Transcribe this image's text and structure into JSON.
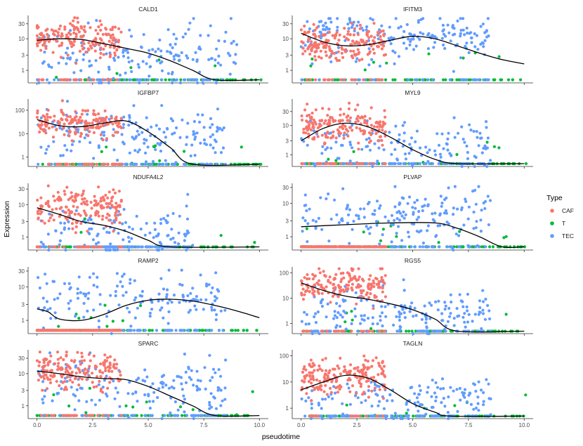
{
  "chart_data": {
    "type": "scatter",
    "xlabel": "pseudotime",
    "ylabel": "Expression",
    "x_ticks": [
      0.0,
      2.5,
      5.0,
      7.5,
      10.0
    ],
    "x_tick_labels": [
      "0.0",
      "2.5",
      "5.0",
      "7.5",
      "10.0"
    ],
    "xlim": [
      -0.4,
      10.4
    ],
    "y_scale": "log",
    "legend": {
      "title": "Type",
      "position": "right",
      "entries": [
        {
          "label": "CAF",
          "color": "#F8766D"
        },
        {
          "label": "T",
          "color": "#00BA38"
        },
        {
          "label": "TEC",
          "color": "#619CFF"
        }
      ]
    },
    "panels": [
      {
        "title": "CALD1",
        "y_ticks": [
          1,
          3,
          10,
          30
        ],
        "ylim": [
          0.4,
          55
        ],
        "caf": {
          "range": [
            0,
            3.8
          ],
          "level": 10,
          "spread": 0.9
        },
        "tec": {
          "range": [
            0,
            9
          ],
          "level": 3,
          "spread": 1.0,
          "drop": 0.25
        },
        "zero_level": 0.5,
        "trend": [
          [
            0,
            9
          ],
          [
            1,
            10
          ],
          [
            2,
            9.5
          ],
          [
            3,
            7
          ],
          [
            4,
            5
          ],
          [
            5,
            3.5
          ],
          [
            6,
            2
          ],
          [
            7,
            1
          ],
          [
            8,
            0.5
          ],
          [
            10,
            0.5
          ]
        ]
      },
      {
        "title": "IFITM3",
        "y_ticks": [
          1,
          3,
          10,
          30
        ],
        "ylim": [
          0.4,
          55
        ],
        "caf": {
          "range": [
            0,
            3.8
          ],
          "level": 7,
          "spread": 0.9
        },
        "tec": {
          "range": [
            0,
            8.5
          ],
          "level": 12,
          "spread": 0.9
        },
        "zero_level": 0.5,
        "trend": [
          [
            0,
            15
          ],
          [
            1,
            8
          ],
          [
            2,
            6
          ],
          [
            3,
            6.5
          ],
          [
            4,
            9
          ],
          [
            5,
            12
          ],
          [
            6,
            10
          ],
          [
            7,
            6
          ],
          [
            8,
            3.5
          ],
          [
            9,
            2.2
          ],
          [
            10,
            1.6
          ]
        ]
      },
      {
        "title": "IGFBP7",
        "y_ticks": [
          1,
          10,
          100
        ],
        "ylim": [
          0.4,
          300
        ],
        "caf": {
          "range": [
            0,
            3.8
          ],
          "level": 30,
          "spread": 1.0
        },
        "tec": {
          "range": [
            0,
            8.5
          ],
          "level": 8,
          "spread": 1.2,
          "drop": 0.2
        },
        "zero_level": 0.5,
        "trend": [
          [
            0,
            40
          ],
          [
            1,
            22
          ],
          [
            2,
            20
          ],
          [
            3,
            28
          ],
          [
            4,
            35
          ],
          [
            5,
            12
          ],
          [
            6,
            2.5
          ],
          [
            7,
            0.5
          ],
          [
            10,
            0.5
          ]
        ]
      },
      {
        "title": "MYL9",
        "y_ticks": [
          1,
          3,
          10,
          30
        ],
        "ylim": [
          0.4,
          80
        ],
        "caf": {
          "range": [
            0,
            3.8
          ],
          "level": 10,
          "spread": 1.0
        },
        "tec": {
          "range": [
            0,
            8.5
          ],
          "level": 2,
          "spread": 1.0,
          "drop": 0.35
        },
        "zero_level": 0.5,
        "trend": [
          [
            0,
            3
          ],
          [
            1,
            8
          ],
          [
            2,
            12
          ],
          [
            3,
            9
          ],
          [
            4,
            4
          ],
          [
            5,
            1.5
          ],
          [
            6,
            0.7
          ],
          [
            7,
            0.5
          ],
          [
            10,
            0.5
          ]
        ]
      },
      {
        "title": "NDUFA4L2",
        "y_ticks": [
          1,
          3,
          10,
          30
        ],
        "ylim": [
          0.4,
          45
        ],
        "caf": {
          "range": [
            0,
            3.8
          ],
          "level": 8,
          "spread": 0.9
        },
        "tec": {
          "range": [
            0,
            7
          ],
          "level": 1.5,
          "spread": 1.0,
          "drop": 0.5
        },
        "zero_level": 0.5,
        "trend": [
          [
            0,
            8
          ],
          [
            1,
            5
          ],
          [
            2,
            3
          ],
          [
            3,
            2.3
          ],
          [
            4,
            1.5
          ],
          [
            5,
            0.8
          ],
          [
            6,
            0.5
          ],
          [
            10,
            0.5
          ]
        ]
      },
      {
        "title": "PLVAP",
        "y_ticks": [
          1,
          3,
          10,
          30
        ],
        "ylim": [
          0.4,
          40
        ],
        "caf": {
          "range": [
            0,
            3.8
          ],
          "level": 0.5,
          "spread": 0.2,
          "drop": 1.0
        },
        "tec": {
          "range": [
            0,
            8.5
          ],
          "level": 4,
          "spread": 1.0,
          "drop": 0.2
        },
        "zero_level": 0.5,
        "trend": [
          [
            0,
            2
          ],
          [
            2,
            2.3
          ],
          [
            4,
            2.6
          ],
          [
            6,
            2.6
          ],
          [
            7,
            1.8
          ],
          [
            8,
            1.0
          ],
          [
            9,
            0.5
          ],
          [
            10,
            0.5
          ]
        ]
      },
      {
        "title": "RAMP2",
        "y_ticks": [
          1,
          3,
          10,
          30
        ],
        "ylim": [
          0.4,
          40
        ],
        "caf": {
          "range": [
            0,
            3.8
          ],
          "level": 0.5,
          "spread": 0.2,
          "drop": 1.0
        },
        "tec": {
          "range": [
            0,
            8.5
          ],
          "level": 5,
          "spread": 0.9,
          "drop": 0.3
        },
        "zero_level": 0.5,
        "trend": [
          [
            0,
            2.2
          ],
          [
            0.5,
            1.8
          ],
          [
            1,
            1.1
          ],
          [
            2,
            1.0
          ],
          [
            3,
            1.5
          ],
          [
            4,
            2.8
          ],
          [
            5,
            4
          ],
          [
            6,
            4.3
          ],
          [
            7,
            3.8
          ],
          [
            8,
            2.8
          ],
          [
            9,
            1.9
          ],
          [
            10,
            1.2
          ]
        ]
      },
      {
        "title": "RGS5",
        "y_ticks": [
          1,
          10,
          100
        ],
        "ylim": [
          0.4,
          170
        ],
        "caf": {
          "range": [
            0,
            3.8
          ],
          "level": 30,
          "spread": 1.0
        },
        "tec": {
          "range": [
            0,
            8.5
          ],
          "level": 3,
          "spread": 1.0,
          "drop": 0.3
        },
        "zero_level": 0.5,
        "trend": [
          [
            0,
            40
          ],
          [
            1,
            20
          ],
          [
            2,
            12
          ],
          [
            3,
            9
          ],
          [
            4,
            6
          ],
          [
            5,
            3.5
          ],
          [
            6,
            1.5
          ],
          [
            7,
            0.5
          ],
          [
            10,
            0.5
          ]
        ]
      },
      {
        "title": "SPARC",
        "y_ticks": [
          1,
          3,
          10,
          30
        ],
        "ylim": [
          0.4,
          55
        ],
        "caf": {
          "range": [
            0,
            3.8
          ],
          "level": 12,
          "spread": 0.9
        },
        "tec": {
          "range": [
            0,
            8.5
          ],
          "level": 4,
          "spread": 1.0,
          "drop": 0.25
        },
        "zero_level": 0.5,
        "trend": [
          [
            0,
            12
          ],
          [
            1,
            10
          ],
          [
            2,
            8
          ],
          [
            3,
            7
          ],
          [
            4,
            6.5
          ],
          [
            5,
            4
          ],
          [
            6,
            2
          ],
          [
            7,
            1
          ],
          [
            8,
            0.5
          ],
          [
            10,
            0.5
          ]
        ]
      },
      {
        "title": "TAGLN",
        "y_ticks": [
          1,
          10,
          100
        ],
        "ylim": [
          0.4,
          170
        ],
        "caf": {
          "range": [
            0,
            3.8
          ],
          "level": 15,
          "spread": 1.0
        },
        "tec": {
          "range": [
            0,
            8.5
          ],
          "level": 2,
          "spread": 1.0,
          "drop": 0.35
        },
        "zero_level": 0.5,
        "trend": [
          [
            0,
            5
          ],
          [
            1,
            10
          ],
          [
            2,
            18
          ],
          [
            3,
            14
          ],
          [
            4,
            5
          ],
          [
            5,
            1.5
          ],
          [
            6,
            0.7
          ],
          [
            6.7,
            0.5
          ],
          [
            10,
            0.5
          ]
        ]
      }
    ]
  }
}
